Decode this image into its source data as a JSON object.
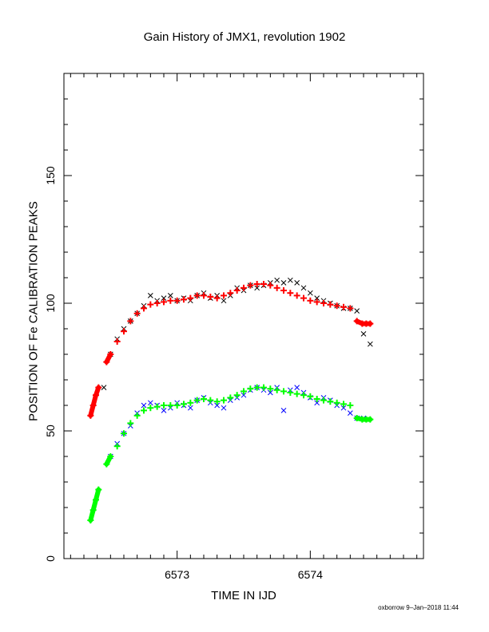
{
  "chart_data": {
    "type": "scatter",
    "title": "Gain History of JMX1, revolution 1902",
    "xlabel": "TIME IN IJD",
    "ylabel": "POSITION OF Fe CALIBRATION PEAKS",
    "xlim": [
      6572.15,
      6574.85
    ],
    "ylim": [
      0,
      190
    ],
    "x_ticks": [
      6573,
      6574
    ],
    "x_tick_labels": [
      "6573",
      "6574"
    ],
    "y_ticks": [
      0,
      50,
      100,
      150
    ],
    "y_tick_labels": [
      "0",
      "50",
      "100",
      "150"
    ],
    "grid": false,
    "footer": "oxborrow  9–Jan–2018 11:44",
    "colors": {
      "upper_fit": "#ff0000",
      "upper_raw": "#000000",
      "lower_fit": "#00ff00",
      "lower_raw": "#0000ff"
    },
    "series": [
      {
        "marker": "x",
        "color": "#000000",
        "x": [
          6572.45,
          6572.5,
          6572.55,
          6572.6,
          6572.65,
          6572.7,
          6572.75,
          6572.8,
          6572.85,
          6572.9,
          6572.95,
          6573.0,
          6573.05,
          6573.1,
          6573.15,
          6573.2,
          6573.25,
          6573.3,
          6573.35,
          6573.4,
          6573.45,
          6573.5,
          6573.55,
          6573.6,
          6573.65,
          6573.7,
          6573.75,
          6573.8,
          6573.85,
          6573.9,
          6573.95,
          6574.0,
          6574.05,
          6574.1,
          6574.15,
          6574.2,
          6574.25,
          6574.3,
          6574.35,
          6574.4,
          6574.45
        ],
        "y": [
          67,
          80,
          86,
          90,
          93,
          96,
          99,
          103,
          101,
          102,
          103,
          101,
          102,
          101,
          103,
          104,
          102,
          103,
          101,
          103,
          106,
          105,
          107,
          106,
          107,
          108,
          109,
          108,
          109,
          108,
          106,
          104,
          102,
          101,
          100,
          99,
          98,
          98,
          97,
          88,
          84
        ]
      },
      {
        "name": "",
        "marker": "+",
        "color": "#ff0000",
        "x": [
          6572.35,
          6572.37,
          6572.39,
          6572.41,
          6572.47,
          6572.5,
          6572.55,
          6572.6,
          6572.65,
          6572.7,
          6572.75,
          6572.8,
          6572.85,
          6572.9,
          6572.95,
          6573.0,
          6573.05,
          6573.1,
          6573.15,
          6573.2,
          6573.25,
          6573.3,
          6573.35,
          6573.4,
          6573.45,
          6573.5,
          6573.55,
          6573.6,
          6573.65,
          6573.7,
          6573.75,
          6573.8,
          6573.85,
          6573.9,
          6573.95,
          6574.0,
          6574.05,
          6574.1,
          6574.15,
          6574.2,
          6574.25,
          6574.3,
          6574.35,
          6574.39,
          6574.42,
          6574.45
        ],
        "y": [
          56,
          60,
          64,
          67,
          77,
          80,
          85,
          89,
          93,
          96,
          98,
          99.5,
          100,
          100.5,
          101,
          101,
          101.5,
          102,
          103,
          103,
          102.5,
          102,
          103,
          104,
          105,
          106,
          107,
          107.5,
          107.5,
          107,
          106,
          105,
          104,
          103,
          102,
          101,
          100.5,
          100,
          99.5,
          99,
          98.5,
          98,
          93,
          92,
          92,
          92
        ]
      },
      {
        "marker": "x",
        "color": "#0000ff",
        "x": [
          6572.5,
          6572.55,
          6572.6,
          6572.65,
          6572.7,
          6572.75,
          6572.8,
          6572.85,
          6572.9,
          6572.95,
          6573.0,
          6573.05,
          6573.1,
          6573.15,
          6573.2,
          6573.25,
          6573.3,
          6573.35,
          6573.4,
          6573.45,
          6573.5,
          6573.55,
          6573.6,
          6573.65,
          6573.7,
          6573.75,
          6573.8,
          6573.85,
          6573.9,
          6573.95,
          6574.0,
          6574.05,
          6574.1,
          6574.15,
          6574.2,
          6574.25,
          6574.3,
          6574.35,
          6574.4
        ],
        "y": [
          40,
          45,
          49,
          52,
          57,
          60,
          61,
          60,
          58,
          59,
          61,
          60,
          59,
          62,
          63,
          61,
          60,
          59,
          62,
          63,
          64,
          66,
          67,
          66,
          65,
          67,
          58,
          66,
          67,
          65,
          63,
          61,
          63,
          62,
          60,
          59,
          57,
          55,
          55
        ]
      },
      {
        "name": "",
        "marker": "+",
        "color": "#00ff00",
        "x": [
          6572.35,
          6572.37,
          6572.39,
          6572.41,
          6572.47,
          6572.5,
          6572.55,
          6572.6,
          6572.65,
          6572.7,
          6572.75,
          6572.8,
          6572.85,
          6572.9,
          6572.95,
          6573.0,
          6573.05,
          6573.1,
          6573.15,
          6573.2,
          6573.25,
          6573.3,
          6573.35,
          6573.4,
          6573.45,
          6573.5,
          6573.55,
          6573.6,
          6573.65,
          6573.7,
          6573.75,
          6573.8,
          6573.85,
          6573.9,
          6573.95,
          6574.0,
          6574.05,
          6574.1,
          6574.15,
          6574.2,
          6574.25,
          6574.3,
          6574.35,
          6574.39,
          6574.42,
          6574.45
        ],
        "y": [
          15,
          19,
          23,
          27,
          37,
          40,
          44,
          49,
          53,
          56,
          58,
          59,
          59.5,
          60,
          60,
          60,
          60.5,
          61,
          62,
          62.5,
          62,
          61.5,
          62,
          63,
          64,
          65.5,
          66.5,
          67,
          67,
          66.5,
          66,
          65.5,
          65,
          64.5,
          64,
          63.5,
          62.5,
          62,
          61.5,
          61,
          60.5,
          60,
          55,
          54.5,
          54.5,
          54.5
        ]
      }
    ]
  }
}
